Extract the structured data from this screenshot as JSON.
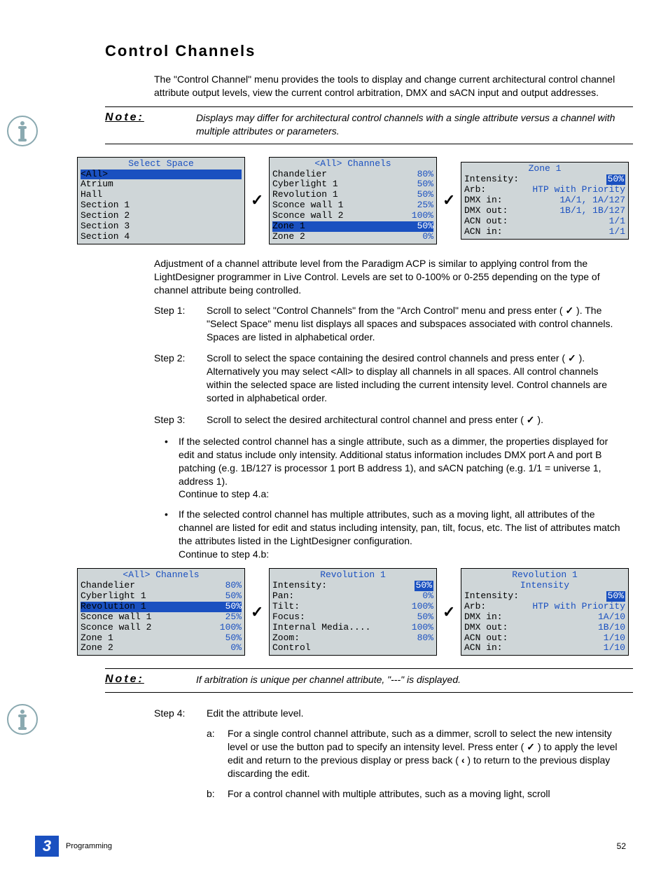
{
  "heading": "Control Channels",
  "intro": "The \"Control Channel\" menu provides the tools to display and change current architectural control channel attribute output levels, view the current control arbitration, DMX and sACN input and output addresses.",
  "note1_label": "Note:",
  "note1_text": "Displays may differ for architectural control channels with a single attribute versus a channel with multiple attributes or parameters.",
  "panels1": {
    "p1": {
      "title": "Select Space",
      "rows": [
        {
          "label": "<All>",
          "val": "",
          "hl": true
        },
        {
          "label": "Atrium",
          "val": ""
        },
        {
          "label": "Hall",
          "val": ""
        },
        {
          "label": "Section 1",
          "val": ""
        },
        {
          "label": "Section 2",
          "val": ""
        },
        {
          "label": "Section 3",
          "val": ""
        },
        {
          "label": "Section 4",
          "val": ""
        }
      ]
    },
    "p2": {
      "title": "<All> Channels",
      "rows": [
        {
          "label": "Chandelier",
          "val": "80%"
        },
        {
          "label": "Cyberlight 1",
          "val": "50%"
        },
        {
          "label": "Revolution 1",
          "val": "50%"
        },
        {
          "label": "Sconce wall 1",
          "val": "25%"
        },
        {
          "label": "Sconce wall 2",
          "val": "100%"
        },
        {
          "label": "Zone 1",
          "val": "50%",
          "hl": true
        },
        {
          "label": "Zone 2",
          "val": "0%"
        }
      ]
    },
    "p3": {
      "title": "Zone 1",
      "rows": [
        {
          "label": "Intensity:",
          "val": "50%",
          "valhl": true
        },
        {
          "label": "Arb:",
          "val": "HTP with Priority"
        },
        {
          "label": "DMX in:",
          "val": "1A/1, 1A/127"
        },
        {
          "label": "DMX out:",
          "val": "1B/1, 1B/127"
        },
        {
          "label": "ACN out:",
          "val": "1/1"
        },
        {
          "label": "ACN in:",
          "val": "1/1"
        }
      ]
    }
  },
  "after_panels1": "Adjustment of a channel attribute level from the Paradigm ACP is similar to applying control from the LightDesigner programmer in Live Control. Levels are set to 0-100% or 0-255 depending on the type of channel attribute being controlled.",
  "step1_label": "Step 1:",
  "step1_a": "Scroll to select \"Control Channels\" from the \"Arch Control\" menu and press enter ( ",
  "step1_b": " ). The \"Select Space\" menu list displays all spaces and subspaces associated with control channels. Spaces are listed in alphabetical order.",
  "step2_label": "Step 2:",
  "step2_a": "Scroll to select the space containing the desired control channels and press enter ( ",
  "step2_b": " ). Alternatively you may select <All> to display all channels in all spaces. All control channels within the selected space are listed including the current intensity level. Control channels are sorted in alphabetical order.",
  "step3_label": "Step 3:",
  "step3_a": "Scroll to select the desired architectural control channel and press enter ( ",
  "step3_b": " ).",
  "bullet1": "If the selected control channel has a single attribute, such as a dimmer, the properties displayed for edit and status include only intensity. Additional status information includes DMX port A and port B patching (e.g. 1B/127 is processor 1 port B address 1), and sACN patching (e.g. 1/1 = universe 1, address 1).",
  "bullet1_cont": "Continue to step 4.a:",
  "bullet2": "If the selected control channel has multiple attributes, such as a moving light, all attributes of the channel are listed for edit and status including intensity, pan, tilt, focus, etc. The list of attributes match the attributes listed in the LightDesigner configuration.",
  "bullet2_cont": "Continue to step 4.b:",
  "panels2": {
    "p1": {
      "title": "<All> Channels",
      "rows": [
        {
          "label": "Chandelier",
          "val": "80%"
        },
        {
          "label": "Cyberlight 1",
          "val": "50%"
        },
        {
          "label": "Revolution 1",
          "val": "50%",
          "hl": true
        },
        {
          "label": "Sconce wall 1",
          "val": "25%"
        },
        {
          "label": "Sconce wall 2",
          "val": "100%"
        },
        {
          "label": "Zone 1",
          "val": "50%"
        },
        {
          "label": "Zone 2",
          "val": "0%"
        }
      ]
    },
    "p2": {
      "title": "Revolution 1",
      "rows": [
        {
          "label": "Intensity:",
          "val": "50%",
          "valhl": true
        },
        {
          "label": "Pan:",
          "val": "0%"
        },
        {
          "label": "Tilt:",
          "val": "100%"
        },
        {
          "label": "Focus:",
          "val": "50%"
        },
        {
          "label": "Internal Media....",
          "val": "100%"
        },
        {
          "label": "Zoom:",
          "val": "80%"
        },
        {
          "label": "Control",
          "val": ""
        }
      ]
    },
    "p3": {
      "title": "Revolution 1",
      "subtitle": "Intensity",
      "rows": [
        {
          "label": "Intensity:",
          "val": "50%",
          "valhl": true
        },
        {
          "label": "Arb:",
          "val": "HTP with Priority"
        },
        {
          "label": "DMX in:",
          "val": "1A/10"
        },
        {
          "label": "DMX out:",
          "val": "1B/10"
        },
        {
          "label": "ACN out:",
          "val": "1/10"
        },
        {
          "label": "ACN in:",
          "val": "1/10"
        }
      ]
    }
  },
  "note2_label": "Note:",
  "note2_text": "If arbitration is unique per channel attribute, \"---\" is displayed.",
  "step4_label": "Step 4:",
  "step4_text": "Edit the attribute level.",
  "step4a_label": "a:",
  "step4a_a": "For a single control channel attribute, such as a dimmer, scroll to select the new intensity level or use the button pad to specify an intensity level. Press enter ( ",
  "step4a_b": " ) to apply the level edit and return to the previous display or press back ( ",
  "step4a_c": " ) to return to the previous display discarding the edit.",
  "step4b_label": "b:",
  "step4b_text": "For a control channel with multiple attributes, such as a moving light, scroll",
  "footer": {
    "chapter": "3",
    "section": "Programming",
    "page": "52"
  },
  "checkmark": "✓",
  "back_sym": "‹"
}
